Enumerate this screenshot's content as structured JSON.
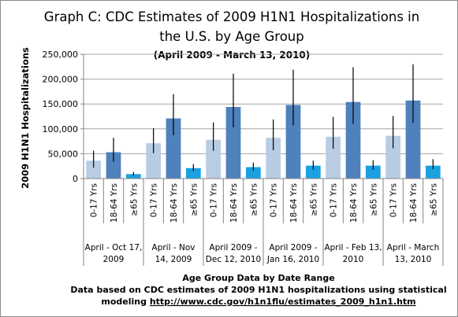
{
  "chart_data": {
    "type": "bar",
    "title": "Graph C: CDC Estimates of 2009 H1N1 Hospitalizations in the U.S. by Age Group",
    "title_lines": [
      "Graph C: CDC Estimates of 2009 H1N1 Hospitalizations in",
      "the U.S. by Age Group"
    ],
    "subtitle": "(April 2009 - March 13, 2010)",
    "ylabel": "2009 H1N1 Hospitalizations",
    "xlabel": "Age Group Data by Date Range",
    "ylim": [
      0,
      250000
    ],
    "yticks": [
      0,
      50000,
      100000,
      150000,
      200000,
      250000
    ],
    "ytick_labels": [
      "0",
      "50,000",
      "100,000",
      "150,000",
      "200,000",
      "250,000"
    ],
    "grid": "horizontal",
    "legend": "none",
    "age_groups": [
      "0-17 Yrs",
      "18-64 Yrs",
      "≥65 Yrs"
    ],
    "colors": {
      "0-17 Yrs": "#b8cce4",
      "18-64 Yrs": "#4f81bd",
      "≥65 Yrs": "#1ba1e2",
      "error_bar": "#000000",
      "grid": "#a6a6a6",
      "axis": "#868686"
    },
    "groups": [
      {
        "label_lines": [
          "April - Oct 17,",
          "2009"
        ],
        "values": [
          36000,
          53000,
          9000
        ],
        "error_low": [
          22000,
          34000,
          6000
        ],
        "error_high": [
          56000,
          82000,
          13000
        ]
      },
      {
        "label_lines": [
          "April - Nov",
          "14, 2009"
        ],
        "values": [
          71000,
          121000,
          21000
        ],
        "error_low": [
          51000,
          87000,
          15000
        ],
        "error_high": [
          101000,
          170000,
          29000
        ]
      },
      {
        "label_lines": [
          "April 2009 -",
          "Dec 12, 2010"
        ],
        "values": [
          78000,
          144000,
          23000
        ],
        "error_low": [
          56000,
          103000,
          16000
        ],
        "error_high": [
          113000,
          211000,
          32000
        ]
      },
      {
        "label_lines": [
          "April 2009 -",
          "Jan 16, 2010"
        ],
        "values": [
          82000,
          148000,
          26000
        ],
        "error_low": [
          57000,
          107000,
          18000
        ],
        "error_high": [
          119000,
          219000,
          36000
        ]
      },
      {
        "label_lines": [
          "April - Feb 13,",
          "2010"
        ],
        "values": [
          84000,
          154000,
          26000
        ],
        "error_low": [
          60000,
          110000,
          18000
        ],
        "error_high": [
          124000,
          224000,
          37000
        ]
      },
      {
        "label_lines": [
          "April - March",
          "13, 2010"
        ],
        "values": [
          86000,
          157000,
          26000
        ],
        "error_low": [
          61000,
          112000,
          19000
        ],
        "error_high": [
          126000,
          230000,
          39000
        ]
      }
    ]
  },
  "footer": {
    "note_line1": "Data based on CDC estimates of 2009 H1N1 hospitalizations  using statistical",
    "note_prefix": "modeling ",
    "link_text": "http://www.cdc.gov/h1n1flu/estimates_2009_h1n1.htm"
  }
}
